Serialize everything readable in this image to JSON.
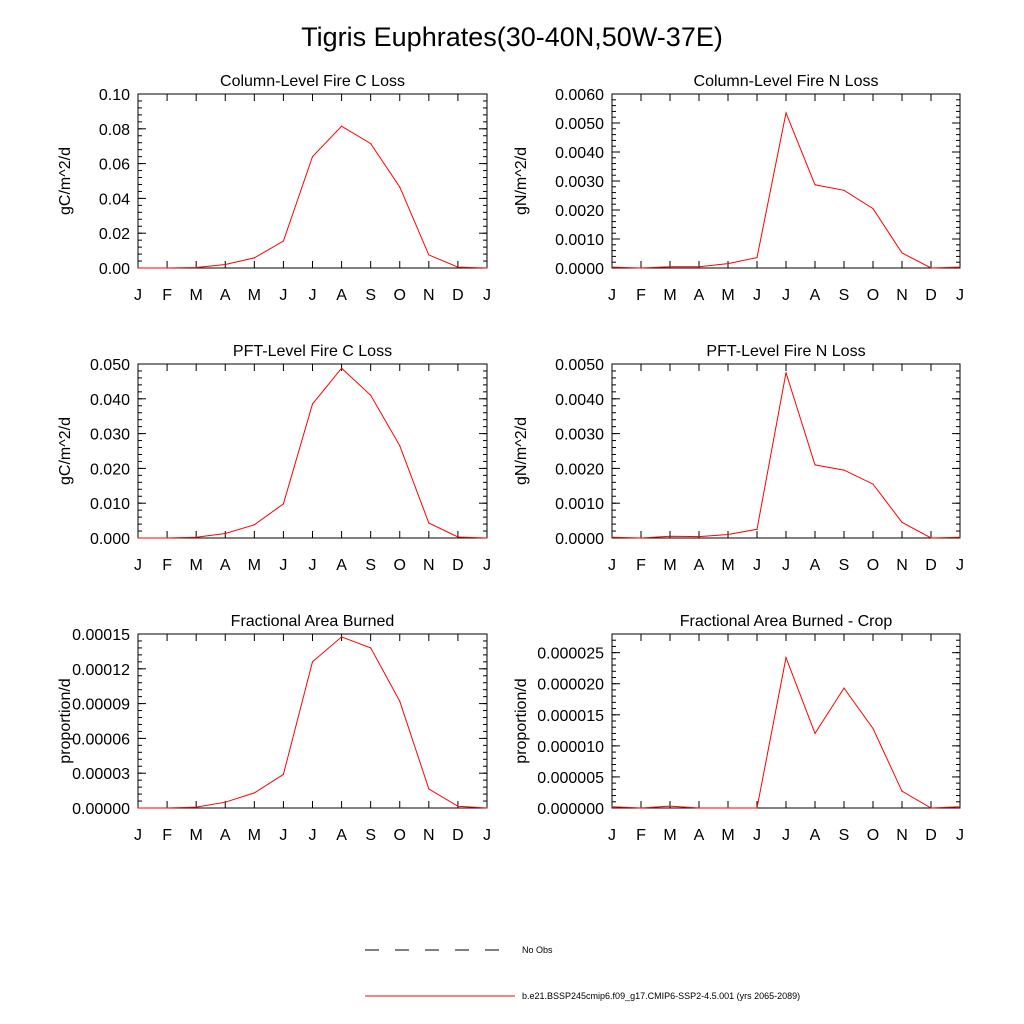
{
  "page_title": "Tigris Euphrates(30-40N,50W-37E)",
  "months": [
    "J",
    "F",
    "M",
    "A",
    "M",
    "J",
    "J",
    "A",
    "S",
    "O",
    "N",
    "D",
    "J"
  ],
  "legend": {
    "items": [
      {
        "label": "No Obs",
        "style": "dashed",
        "color": "#000000"
      },
      {
        "label": "b.e21.BSSP245cmip6.f09_g17.CMIP6-SSP2-4.5.001 (yrs 2065-2089)",
        "style": "solid",
        "color": "#ff0000"
      }
    ]
  },
  "chart_data": [
    {
      "type": "line",
      "title": "Column-Level Fire C Loss",
      "ylabel": "gC/m^2/d",
      "ylim": [
        0,
        0.1
      ],
      "yticks": [
        "0.00",
        "0.02",
        "0.04",
        "0.06",
        "0.08",
        "0.10"
      ],
      "categories": [
        "J",
        "F",
        "M",
        "A",
        "M",
        "J",
        "J",
        "A",
        "S",
        "O",
        "N",
        "D",
        "J"
      ],
      "series": [
        {
          "color": "#ff0000",
          "values": [
            0.0,
            0.0,
            0.0003,
            0.002,
            0.0058,
            0.0155,
            0.064,
            0.0815,
            0.0715,
            0.0465,
            0.0075,
            0.0005,
            0.0
          ]
        }
      ]
    },
    {
      "type": "line",
      "title": "Column-Level Fire N Loss",
      "ylabel": "gN/m^2/d",
      "ylim": [
        0,
        0.006
      ],
      "yticks": [
        "0.0000",
        "0.0010",
        "0.0020",
        "0.0030",
        "0.0040",
        "0.0050",
        "0.0060"
      ],
      "categories": [
        "J",
        "F",
        "M",
        "A",
        "M",
        "J",
        "J",
        "A",
        "S",
        "O",
        "N",
        "D",
        "J"
      ],
      "series": [
        {
          "color": "#ff0000",
          "values": [
            3e-05,
            0.0,
            4e-05,
            4e-05,
            0.00015,
            0.00036,
            0.00535,
            0.00287,
            0.00268,
            0.00205,
            0.00052,
            0.0,
            3e-05
          ]
        }
      ]
    },
    {
      "type": "line",
      "title": "PFT-Level Fire C Loss",
      "ylabel": "gC/m^2/d",
      "ylim": [
        0,
        0.05
      ],
      "yticks": [
        "0.000",
        "0.010",
        "0.020",
        "0.030",
        "0.040",
        "0.050"
      ],
      "categories": [
        "J",
        "F",
        "M",
        "A",
        "M",
        "J",
        "J",
        "A",
        "S",
        "O",
        "N",
        "D",
        "J"
      ],
      "series": [
        {
          "color": "#ff0000",
          "values": [
            0.0,
            0.0,
            0.0002,
            0.0013,
            0.0038,
            0.0098,
            0.0385,
            0.0488,
            0.041,
            0.0265,
            0.0043,
            0.0003,
            0.0
          ]
        }
      ]
    },
    {
      "type": "line",
      "title": "PFT-Level Fire N Loss",
      "ylabel": "gN/m^2/d",
      "ylim": [
        0,
        0.005
      ],
      "yticks": [
        "0.0000",
        "0.0010",
        "0.0020",
        "0.0030",
        "0.0040",
        "0.0050"
      ],
      "categories": [
        "J",
        "F",
        "M",
        "A",
        "M",
        "J",
        "J",
        "A",
        "S",
        "O",
        "N",
        "D",
        "J"
      ],
      "series": [
        {
          "color": "#ff0000",
          "values": [
            2e-05,
            0.0,
            5e-05,
            4e-05,
            0.0001,
            0.00025,
            0.00475,
            0.0021,
            0.00195,
            0.00155,
            0.00045,
            0.0,
            2e-05
          ]
        }
      ]
    },
    {
      "type": "line",
      "title": "Fractional Area Burned",
      "ylabel": "proportion/d",
      "ylim": [
        0,
        0.00015
      ],
      "yticks": [
        "0.00000",
        "0.00003",
        "0.00006",
        "0.00009",
        "0.00012",
        "0.00015"
      ],
      "categories": [
        "J",
        "F",
        "M",
        "A",
        "M",
        "J",
        "J",
        "A",
        "S",
        "O",
        "N",
        "D",
        "J"
      ],
      "series": [
        {
          "color": "#ff0000",
          "values": [
            0.0,
            0.0,
            8e-07,
            5e-06,
            1.3e-05,
            2.9e-05,
            0.000126,
            0.0001475,
            0.000138,
            9.2e-05,
            1.65e-05,
            1.5e-06,
            0.0
          ]
        }
      ]
    },
    {
      "type": "line",
      "title": "Fractional Area Burned - Crop",
      "ylabel": "proportion/d",
      "ylim": [
        0,
        2.8e-05
      ],
      "yticks": [
        "0.000000",
        "0.000005",
        "0.000010",
        "0.000015",
        "0.000020",
        "0.000025"
      ],
      "categories": [
        "J",
        "F",
        "M",
        "A",
        "M",
        "J",
        "J",
        "A",
        "S",
        "O",
        "N",
        "D",
        "J"
      ],
      "series": [
        {
          "color": "#ff0000",
          "values": [
            2e-07,
            0.0,
            3e-07,
            0.0,
            0.0,
            0.0,
            2.42e-05,
            1.2e-05,
            1.93e-05,
            1.28e-05,
            2.7e-06,
            0.0,
            2e-07
          ]
        }
      ]
    }
  ]
}
